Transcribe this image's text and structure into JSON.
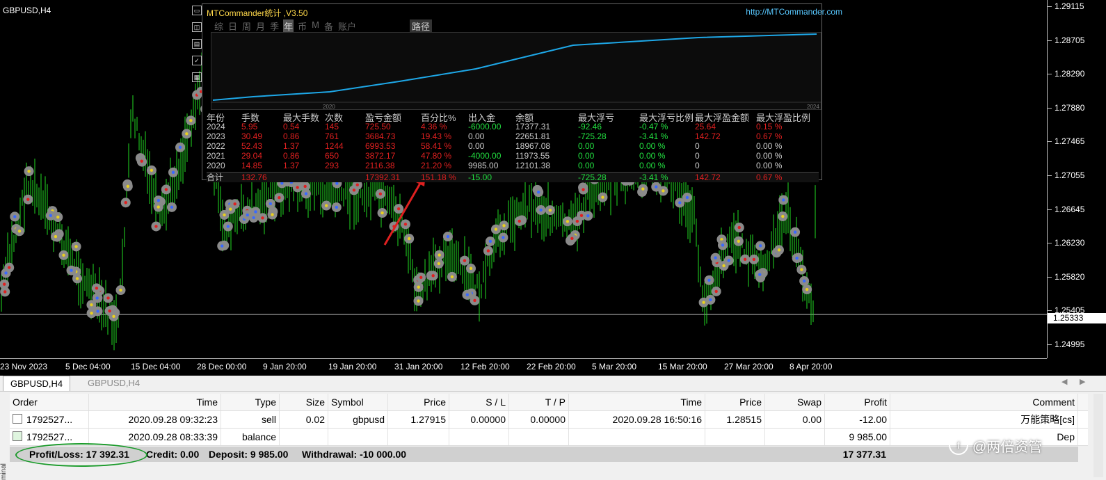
{
  "chart": {
    "symbol_title": "GBPUSD,H4",
    "price_labels": [
      "1.29115",
      "1.28705",
      "1.28290",
      "1.27880",
      "1.27465",
      "1.27055",
      "1.26645",
      "1.26230",
      "1.25820",
      "1.25405",
      "1.24995"
    ],
    "current_price": "1.25333",
    "time_labels": [
      "23 Nov 2023",
      "5 Dec 04:00",
      "15 Dec 04:00",
      "28 Dec 00:00",
      "9 Jan 20:00",
      "19 Jan 20:00",
      "31 Jan 20:00",
      "12 Feb 20:00",
      "22 Feb 20:00",
      "5 Mar 20:00",
      "15 Mar 20:00",
      "27 Mar 20:00",
      "8 Apr 20:00"
    ],
    "colors": {
      "candle": "#22dd22",
      "current_line": "#ffffff",
      "arrow": "#e02020"
    }
  },
  "panel": {
    "title": "MTCommander统计 ,V3.50",
    "url": "http://MTCommander.com",
    "tabs": [
      "综",
      "日",
      "周",
      "月",
      "季",
      "年",
      "币",
      "M",
      "备",
      "账户"
    ],
    "active_tab": "年",
    "path_button": "路径",
    "graph_x_labels": [
      "2020",
      "2024"
    ],
    "headers": [
      "年份",
      "手数",
      "最大手数",
      "次数",
      "盈亏金额",
      "百分比%",
      "出入金",
      "余额",
      "最大浮亏",
      "最大浮亏比例",
      "最大浮盈金额",
      "最大浮盈比例"
    ],
    "rows": [
      [
        "2024",
        "5.95",
        "0.54",
        "145",
        "725.50",
        "4.36 %",
        "-6000.00",
        "17377.31",
        "-92.46",
        "-0.47 %",
        "25.64",
        "0.15 %"
      ],
      [
        "2023",
        "30.49",
        "0.86",
        "761",
        "3684.73",
        "19.43 %",
        "0.00",
        "22651.81",
        "-725.28",
        "-3.41 %",
        "142.72",
        "0.67 %"
      ],
      [
        "2022",
        "52.43",
        "1.37",
        "1244",
        "6993.53",
        "58.41 %",
        "0.00",
        "18967.08",
        "0.00",
        "0.00 %",
        "0",
        "0.00 %"
      ],
      [
        "2021",
        "29.04",
        "0.86",
        "650",
        "3872.17",
        "47.80 %",
        "-4000.00",
        "11973.55",
        "0.00",
        "0.00 %",
        "0",
        "0.00 %"
      ],
      [
        "2020",
        "14.85",
        "1.37",
        "293",
        "2116.38",
        "21.20 %",
        "9985.00",
        "12101.38",
        "0.00",
        "0.00 %",
        "0",
        "0.00 %"
      ]
    ],
    "total": [
      "合计",
      "132.76",
      "",
      "",
      "17392.31",
      "151.18 %",
      "-15.00",
      "",
      "-725.28",
      "-3.41 %",
      "142.72",
      "0.67 %"
    ],
    "colors": {
      "title": "#ffd84a",
      "url": "#58c8ff",
      "curve": "#1ea8e8",
      "positive": "#e02020",
      "negative": "#22e040"
    }
  },
  "terminal": {
    "tabs": [
      "GBPUSD,H4",
      "GBPUSD,H4"
    ],
    "headers": [
      "Order",
      "Time",
      "Type",
      "Size",
      "Symbol",
      "Price",
      "S / L",
      "T / P",
      "Time",
      "Price",
      "Swap",
      "Profit",
      "Comment"
    ],
    "rows": [
      {
        "order": "1792527...",
        "time": "2020.09.28 09:32:23",
        "type": "sell",
        "size": "0.02",
        "symbol": "gbpusd",
        "price": "1.27915",
        "sl": "0.00000",
        "tp": "0.00000",
        "close_time": "2020.09.28 16:50:16",
        "close_price": "1.28515",
        "swap": "0.00",
        "profit": "-12.00",
        "comment": "万能策略[cs]"
      },
      {
        "order": "1792527...",
        "time": "2020.09.28 08:33:39",
        "type": "balance",
        "size": "",
        "symbol": "",
        "price": "",
        "sl": "",
        "tp": "",
        "close_time": "",
        "close_price": "",
        "swap": "",
        "profit": "9 985.00",
        "comment": "Dep"
      }
    ],
    "summary": {
      "profit_loss": "Profit/Loss: 17 392.31",
      "credit": "Credit: 0.00",
      "deposit": "Deposit: 9 985.00",
      "withdrawal": "Withdrawal: -10 000.00",
      "total": "17 377.31"
    },
    "side_label": "minal",
    "watermark": "@两倍资管"
  }
}
